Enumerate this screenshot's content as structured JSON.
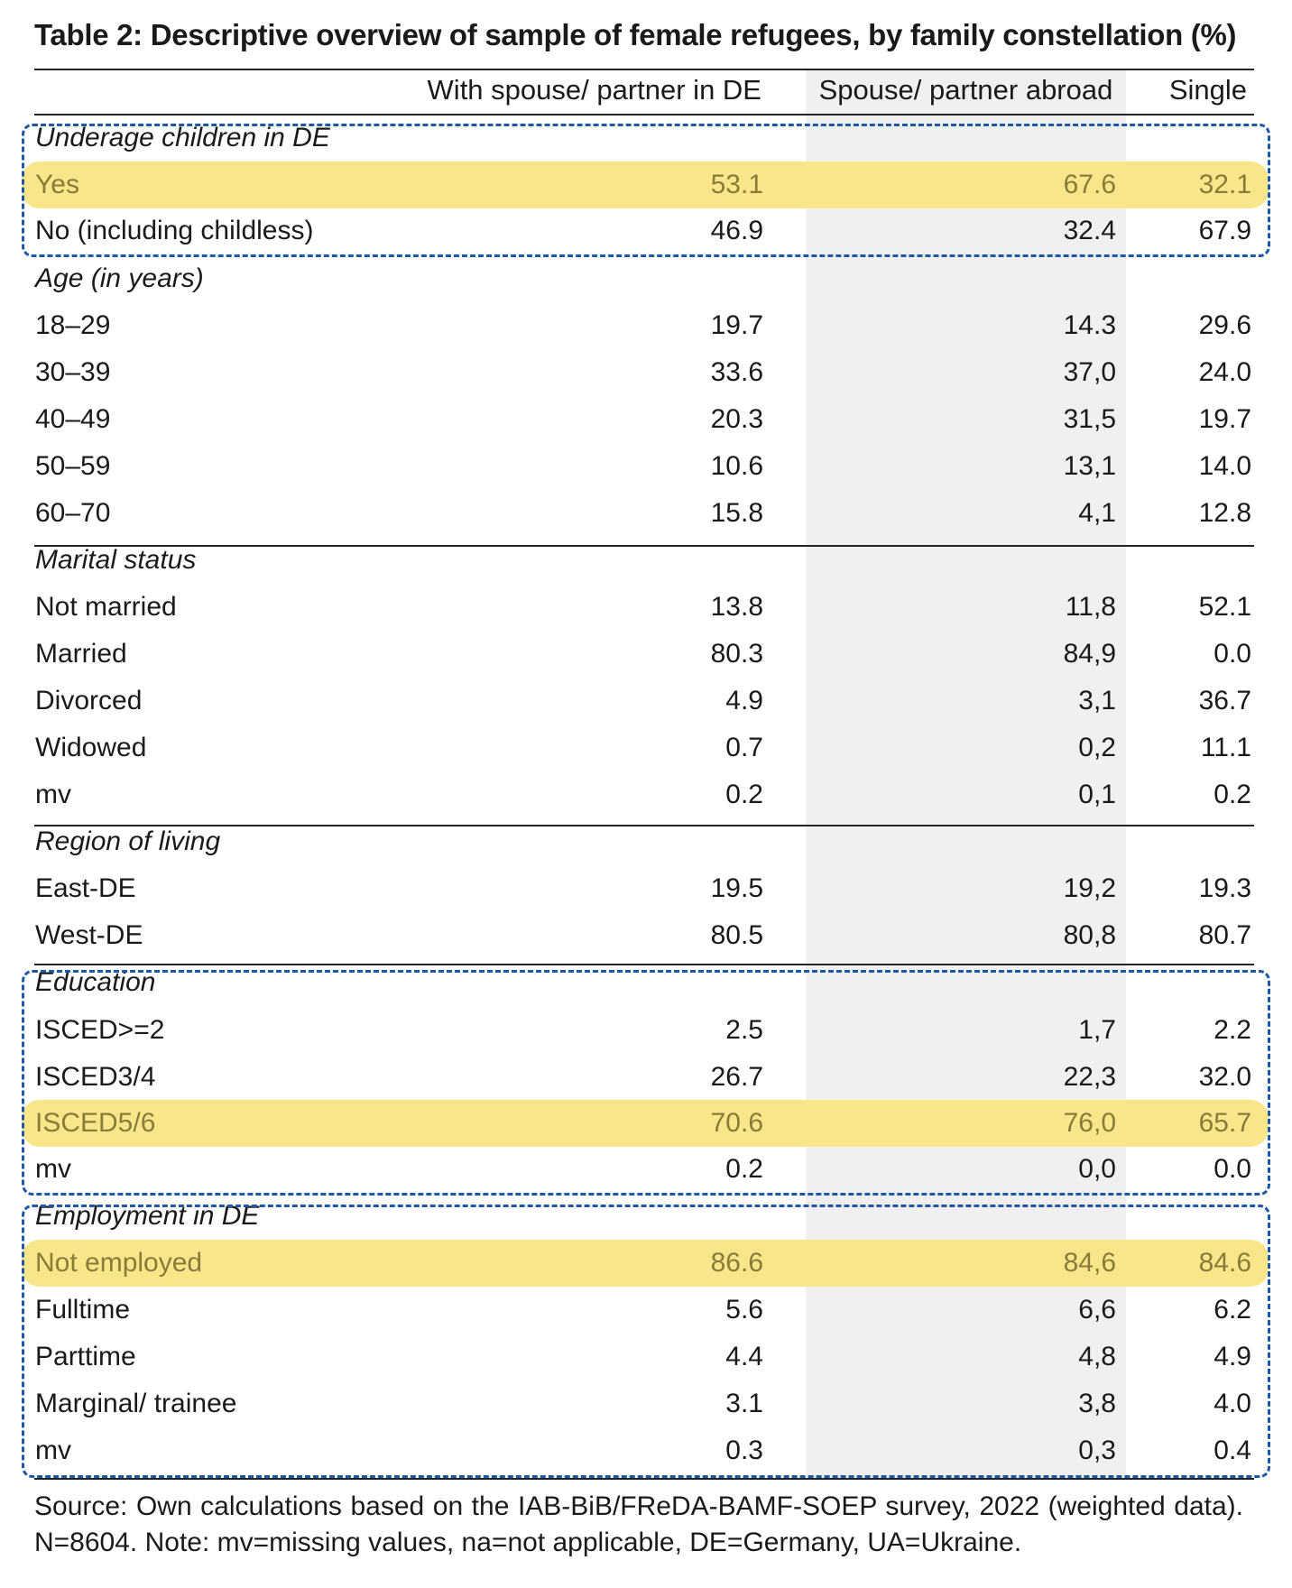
{
  "title": "Table 2: Descriptive overview of sample of female refugees, by family constellation (%)",
  "columns": [
    "With spouse/ partner in DE",
    "Spouse/ partner abroad",
    "Single"
  ],
  "rows": [
    {
      "label": "Underage children in DE",
      "header": true
    },
    {
      "label": "Yes",
      "values": [
        "53.1",
        "67.6",
        "32.1"
      ],
      "highlight": true
    },
    {
      "label": "No (including childless)",
      "values": [
        "46.9",
        "32.4",
        "67.9"
      ]
    },
    {
      "label": "Age (in years)",
      "header": true
    },
    {
      "label": "18–29",
      "values": [
        "19.7",
        "14.3",
        "29.6"
      ]
    },
    {
      "label": "30–39",
      "values": [
        "33.6",
        "37,0",
        "24.0"
      ]
    },
    {
      "label": "40–49",
      "values": [
        "20.3",
        "31,5",
        "19.7"
      ]
    },
    {
      "label": "50–59",
      "values": [
        "10.6",
        "13,1",
        "14.0"
      ]
    },
    {
      "label": "60–70",
      "values": [
        "15.8",
        "4,1",
        "12.8"
      ]
    },
    {
      "label": "Marital status",
      "header": true
    },
    {
      "label": "Not married",
      "values": [
        "13.8",
        "11,8",
        "52.1"
      ]
    },
    {
      "label": "Married",
      "values": [
        "80.3",
        "84,9",
        "0.0"
      ]
    },
    {
      "label": "Divorced",
      "values": [
        "4.9",
        "3,1",
        "36.7"
      ]
    },
    {
      "label": "Widowed",
      "values": [
        "0.7",
        "0,2",
        "11.1"
      ]
    },
    {
      "label": "mv",
      "values": [
        "0.2",
        "0,1",
        "0.2"
      ]
    },
    {
      "label": "Region of living",
      "header": true
    },
    {
      "label": "East-DE",
      "values": [
        "19.5",
        "19,2",
        "19.3"
      ]
    },
    {
      "label": "West-DE",
      "values": [
        "80.5",
        "80,8",
        "80.7"
      ]
    },
    {
      "label": "Education",
      "header": true
    },
    {
      "label": "ISCED>=2",
      "values": [
        "2.5",
        "1,7",
        "2.2"
      ]
    },
    {
      "label": "ISCED3/4",
      "values": [
        "26.7",
        "22,3",
        "32.0"
      ]
    },
    {
      "label": "ISCED5/6",
      "values": [
        "70.6",
        "76,0",
        "65.7"
      ],
      "highlight": true
    },
    {
      "label": "mv",
      "values": [
        "0.2",
        "0,0",
        "0.0"
      ]
    },
    {
      "label": "Employment in DE",
      "header": true
    },
    {
      "label": "Not employed",
      "values": [
        "86.6",
        "84,6",
        "84.6"
      ],
      "highlight": true
    },
    {
      "label": "Fulltime",
      "values": [
        "5.6",
        "6,6",
        "6.2"
      ]
    },
    {
      "label": "Parttime",
      "values": [
        "4.4",
        "4,8",
        "4.9"
      ]
    },
    {
      "label": "Marginal/ trainee",
      "values": [
        "3.1",
        "3,8",
        "4.0"
      ]
    },
    {
      "label": "mv",
      "values": [
        "0.3",
        "0,3",
        "0.4"
      ]
    }
  ],
  "note": "Source: Own calculations based on the IAB-BiB/FReDA-BAMF-SOEP survey, 2022 (weighted data). N=8604. Note: mv=missing values, na=not applicable, DE=Germany, UA=Ukraine.",
  "colors": {
    "highlight": "#f8e68a",
    "dashed_box": "#1f57a8",
    "shaded_column": "#f0f0f0"
  }
}
